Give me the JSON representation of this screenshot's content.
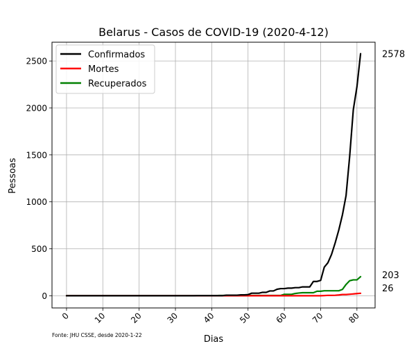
{
  "chart_data": {
    "type": "line",
    "title": "Belarus - Casos de COVID-19 (2020-4-12)",
    "xlabel": "Dias",
    "ylabel": "Pessoas",
    "xlim": [
      -4,
      85
    ],
    "ylim": [
      -130,
      2700
    ],
    "x_ticks": [
      0,
      10,
      20,
      30,
      40,
      50,
      60,
      70,
      80
    ],
    "y_ticks": [
      0,
      500,
      1000,
      1500,
      2000,
      2500
    ],
    "grid": true,
    "legend_position": "top-left",
    "source_note": "Fonte: JHU CSSE, desde 2020-1-22",
    "x": [
      0,
      1,
      2,
      3,
      4,
      5,
      6,
      7,
      8,
      9,
      10,
      11,
      12,
      13,
      14,
      15,
      16,
      17,
      18,
      19,
      20,
      21,
      22,
      23,
      24,
      25,
      26,
      27,
      28,
      29,
      30,
      31,
      32,
      33,
      34,
      35,
      36,
      37,
      38,
      39,
      40,
      41,
      42,
      43,
      44,
      45,
      46,
      47,
      48,
      49,
      50,
      51,
      52,
      53,
      54,
      55,
      56,
      57,
      58,
      59,
      60,
      61,
      62,
      63,
      64,
      65,
      66,
      67,
      68,
      69,
      70,
      71,
      72,
      73,
      74,
      75,
      76,
      77,
      78,
      79,
      80,
      81
    ],
    "series": [
      {
        "name": "Confirmados",
        "color": "#000000",
        "end_label": "2578",
        "values": [
          0,
          0,
          0,
          0,
          0,
          0,
          0,
          0,
          0,
          0,
          0,
          0,
          0,
          0,
          0,
          0,
          0,
          0,
          0,
          0,
          0,
          0,
          0,
          0,
          0,
          0,
          0,
          0,
          0,
          0,
          0,
          0,
          0,
          0,
          0,
          0,
          1,
          1,
          1,
          1,
          1,
          1,
          1,
          1,
          6,
          6,
          6,
          6,
          9,
          9,
          12,
          27,
          27,
          27,
          36,
          36,
          51,
          51,
          69,
          76,
          76,
          81,
          81,
          86,
          86,
          94,
          94,
          94,
          152,
          152,
          163,
          304,
          351,
          440,
          562,
          700,
          861,
          1066,
          1486,
          1981,
          2226,
          2578
        ]
      },
      {
        "name": "Mortes",
        "color": "#ff0000",
        "end_label": "26",
        "values": [
          0,
          0,
          0,
          0,
          0,
          0,
          0,
          0,
          0,
          0,
          0,
          0,
          0,
          0,
          0,
          0,
          0,
          0,
          0,
          0,
          0,
          0,
          0,
          0,
          0,
          0,
          0,
          0,
          0,
          0,
          0,
          0,
          0,
          0,
          0,
          0,
          0,
          0,
          0,
          0,
          0,
          0,
          0,
          0,
          0,
          0,
          0,
          0,
          0,
          0,
          0,
          0,
          0,
          0,
          0,
          0,
          0,
          0,
          0,
          0,
          0,
          0,
          0,
          0,
          0,
          0,
          0,
          0,
          0,
          0,
          0,
          2,
          4,
          4,
          5,
          8,
          13,
          13,
          16,
          19,
          23,
          26
        ]
      },
      {
        "name": "Recuperados",
        "color": "#008000",
        "end_label": "203",
        "values": [
          0,
          0,
          0,
          0,
          0,
          0,
          0,
          0,
          0,
          0,
          0,
          0,
          0,
          0,
          0,
          0,
          0,
          0,
          0,
          0,
          0,
          0,
          0,
          0,
          0,
          0,
          0,
          0,
          0,
          0,
          0,
          0,
          0,
          0,
          0,
          0,
          0,
          0,
          0,
          0,
          0,
          0,
          3,
          3,
          3,
          3,
          3,
          3,
          3,
          3,
          3,
          3,
          3,
          3,
          3,
          3,
          3,
          3,
          3,
          3,
          15,
          15,
          15,
          24,
          29,
          32,
          32,
          32,
          32,
          48,
          48,
          53,
          53,
          53,
          53,
          53,
          67,
          120,
          160,
          169,
          169,
          203
        ]
      }
    ]
  }
}
